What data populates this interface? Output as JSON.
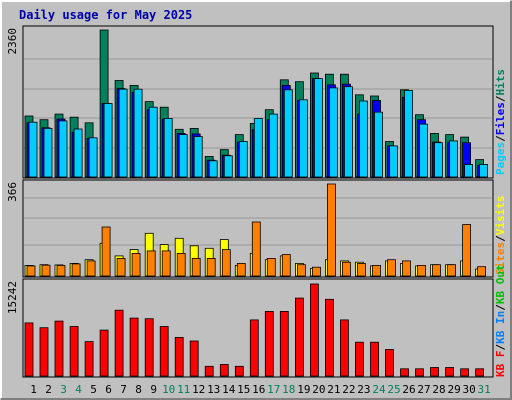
{
  "chart_data": [
    {
      "type": "bar",
      "title": "Daily usage for May 2025",
      "panel": "pages-files-hits",
      "categories": [
        "1",
        "2",
        "3",
        "4",
        "5",
        "6",
        "7",
        "8",
        "9",
        "10",
        "11",
        "12",
        "13",
        "14",
        "15",
        "16",
        "17",
        "18",
        "19",
        "20",
        "21",
        "22",
        "23",
        "24",
        "25",
        "26",
        "27",
        "28",
        "29",
        "30",
        "31"
      ],
      "weekend_days": [
        "3",
        "4",
        "10",
        "11",
        "17",
        "18",
        "24",
        "25",
        "31"
      ],
      "ylim": [
        0,
        2360
      ],
      "max_label": "2360",
      "series": [
        {
          "name": "Hits",
          "color": "#00805c",
          "values": [
            980,
            920,
            1010,
            960,
            870,
            2360,
            1550,
            1470,
            1210,
            1120,
            765,
            780,
            330,
            440,
            680,
            860,
            1080,
            1560,
            1530,
            1670,
            1650,
            1650,
            1320,
            1300,
            570,
            1400,
            1000,
            700,
            680,
            640,
            280
          ]
        },
        {
          "name": "Files",
          "color": "#0000ff",
          "values": [
            870,
            790,
            930,
            720,
            620,
            1180,
            1420,
            1360,
            1080,
            930,
            700,
            690,
            270,
            350,
            560,
            760,
            920,
            1470,
            1230,
            1580,
            1480,
            1490,
            1010,
            1230,
            500,
            1280,
            920,
            560,
            560,
            550,
            190
          ]
        },
        {
          "name": "Pages",
          "color": "#00ccff",
          "values": [
            880,
            780,
            900,
            770,
            630,
            1180,
            1410,
            1410,
            1120,
            940,
            680,
            650,
            260,
            340,
            570,
            940,
            1010,
            1400,
            1240,
            1580,
            1430,
            1450,
            1220,
            1040,
            500,
            1390,
            850,
            550,
            580,
            200,
            200
          ]
        }
      ],
      "legend": [
        "Pages",
        "Files",
        "Hits"
      ]
    },
    {
      "type": "bar",
      "panel": "sites-visits",
      "categories": [
        "1",
        "2",
        "3",
        "4",
        "5",
        "6",
        "7",
        "8",
        "9",
        "10",
        "11",
        "12",
        "13",
        "14",
        "15",
        "16",
        "17",
        "18",
        "19",
        "20",
        "21",
        "22",
        "23",
        "24",
        "25",
        "26",
        "27",
        "28",
        "29",
        "30",
        "31"
      ],
      "ylim": [
        0,
        366
      ],
      "max_label": "366",
      "series": [
        {
          "name": "Visits",
          "color": "#ffff00",
          "values": [
            42,
            45,
            44,
            50,
            65,
            130,
            80,
            105,
            170,
            125,
            150,
            120,
            110,
            145,
            42,
            90,
            65,
            80,
            50,
            30,
            65,
            60,
            55,
            40,
            60,
            50,
            40,
            45,
            45,
            60,
            28
          ]
        },
        {
          "name": "Sites",
          "color": "#ff8000",
          "values": [
            40,
            43,
            42,
            48,
            60,
            195,
            70,
            90,
            100,
            100,
            90,
            70,
            70,
            105,
            50,
            215,
            70,
            85,
            45,
            35,
            366,
            55,
            50,
            42,
            65,
            60,
            42,
            45,
            45,
            205,
            37
          ]
        }
      ],
      "legend": [
        "Sites",
        "Visits"
      ]
    },
    {
      "type": "bar",
      "panel": "kbf-kbin-kbout",
      "categories": [
        "1",
        "2",
        "3",
        "4",
        "5",
        "6",
        "7",
        "8",
        "9",
        "10",
        "11",
        "12",
        "13",
        "14",
        "15",
        "16",
        "17",
        "18",
        "19",
        "20",
        "21",
        "22",
        "23",
        "24",
        "25",
        "26",
        "27",
        "28",
        "29",
        "30",
        "31"
      ],
      "ylim": [
        0,
        15242
      ],
      "max_label": "15242",
      "series": [
        {
          "name": "KB F",
          "color": "#ff0000",
          "values": [
            8800,
            8000,
            9100,
            8200,
            5700,
            7600,
            10900,
            9600,
            9500,
            8200,
            6400,
            5800,
            1600,
            1900,
            1600,
            9300,
            10700,
            10700,
            12900,
            15242,
            12700,
            9300,
            5600,
            5600,
            4400,
            1200,
            1200,
            1400,
            1400,
            1200,
            1200
          ]
        }
      ],
      "legend": [
        "KB F",
        "KB In",
        "KB Out"
      ],
      "legend_colors": {
        "KB F": "#ff0000",
        "KB In": "#0080ff",
        "KB Out": "#00c000"
      }
    }
  ],
  "colors": {
    "background": "#c0c0c0",
    "panel": "#c0c0c0",
    "title": "#0000aa",
    "weekday_label": "#000000",
    "weekend_label": "#00805c",
    "grid": "#999999"
  }
}
